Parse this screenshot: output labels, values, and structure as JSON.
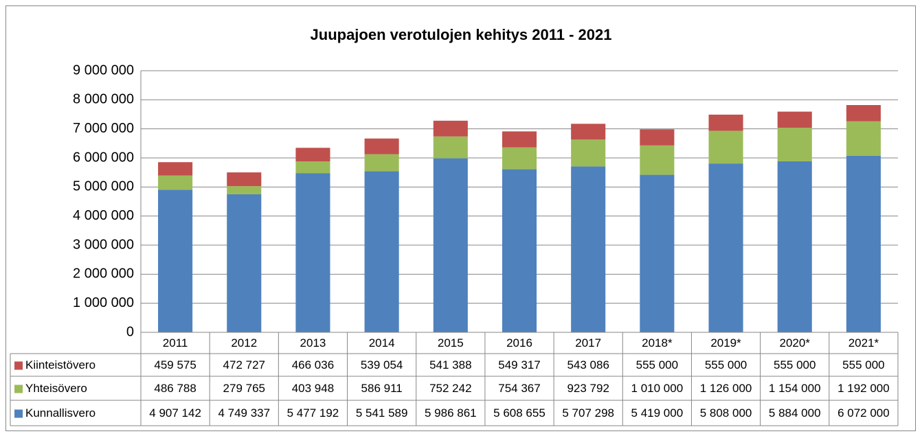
{
  "chart_data": {
    "type": "stacked_bar",
    "title": "Juupajoen verotulojen kehitys 2011 - 2021",
    "categories": [
      "2011",
      "2012",
      "2013",
      "2014",
      "2015",
      "2016",
      "2017",
      "2018*",
      "2019*",
      "2020*",
      "2021*"
    ],
    "series": [
      {
        "name": "Kiinteistövero",
        "color": "#c0504d",
        "values": [
          459575,
          472727,
          466036,
          539054,
          541388,
          549317,
          543086,
          555000,
          555000,
          555000,
          555000
        ],
        "value_labels": [
          "459 575",
          "472 727",
          "466 036",
          "539 054",
          "541 388",
          "549 317",
          "543 086",
          "555 000",
          "555 000",
          "555 000",
          "555 000"
        ]
      },
      {
        "name": "Yhteisövero",
        "color": "#9bbb59",
        "values": [
          486788,
          279765,
          403948,
          586911,
          752242,
          754367,
          923792,
          1010000,
          1126000,
          1154000,
          1192000
        ],
        "value_labels": [
          "486 788",
          "279 765",
          "403 948",
          "586 911",
          "752 242",
          "754 367",
          "923 792",
          "1 010 000",
          "1 126 000",
          "1 154 000",
          "1 192 000"
        ]
      },
      {
        "name": "Kunnallisvero",
        "color": "#4f81bd",
        "values": [
          4907142,
          4749337,
          5477192,
          5541589,
          5986861,
          5608655,
          5707298,
          5419000,
          5808000,
          5884000,
          6072000
        ],
        "value_labels": [
          "4 907 142",
          "4 749 337",
          "5 477 192",
          "5 541 589",
          "5 986 861",
          "5 608 655",
          "5 707 298",
          "5 419 000",
          "5 808 000",
          "5 884 000",
          "6 072 000"
        ]
      }
    ],
    "ylim": [
      0,
      9000000
    ],
    "yticks": [
      0,
      {
        "value": 1000000,
        "label": "1 000 000"
      },
      {
        "value": 2000000,
        "label": "2 000 000"
      },
      {
        "value": 3000000,
        "label": "3 000 000"
      },
      {
        "value": 4000000,
        "label": "4 000 000"
      },
      {
        "value": 5000000,
        "label": "5 000 000"
      },
      {
        "value": 6000000,
        "label": "6 000 000"
      },
      {
        "value": 7000000,
        "label": "7 000 000"
      },
      {
        "value": 8000000,
        "label": "8 000 000"
      },
      {
        "value": 9000000,
        "label": "9 000 000"
      }
    ],
    "grid": true
  }
}
